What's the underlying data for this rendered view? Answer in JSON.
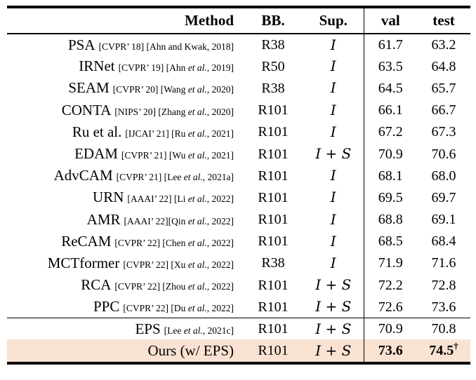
{
  "table": {
    "columns": [
      {
        "label": "Method"
      },
      {
        "label": "BB."
      },
      {
        "label": "Sup."
      },
      {
        "label": "val"
      },
      {
        "label": "test"
      }
    ],
    "highlight_color": "#f9e2d2",
    "rule_color": "#000000",
    "sections": [
      {
        "rows": [
          {
            "method": "PSA",
            "cite": "[CVPR’ 18] [Ahn and Kwak, 2018]",
            "bb": "R38",
            "sup": "I",
            "val": "61.7",
            "test": "63.2",
            "bold": false,
            "highlight": false,
            "dagger": ""
          },
          {
            "method": "IRNet",
            "cite": "[CVPR’ 19] [Ahn et al., 2019]",
            "bb": "R50",
            "sup": "I",
            "val": "63.5",
            "test": "64.8",
            "bold": false,
            "highlight": false,
            "dagger": ""
          },
          {
            "method": "SEAM",
            "cite": "[CVPR’ 20] [Wang et al., 2020]",
            "bb": "R38",
            "sup": "I",
            "val": "64.5",
            "test": "65.7",
            "bold": false,
            "highlight": false,
            "dagger": ""
          },
          {
            "method": "CONTA",
            "cite": "[NIPS’ 20] [Zhang et al., 2020]",
            "bb": "R101",
            "sup": "I",
            "val": "66.1",
            "test": "66.7",
            "bold": false,
            "highlight": false,
            "dagger": ""
          },
          {
            "method": "Ru et al.",
            "cite": "[IJCAI’ 21] [Ru et al., 2021]",
            "bb": "R101",
            "sup": "I",
            "val": "67.2",
            "test": "67.3",
            "bold": false,
            "highlight": false,
            "dagger": ""
          },
          {
            "method": "EDAM",
            "cite": "[CVPR’ 21] [Wu et al., 2021]",
            "bb": "R101",
            "sup": "I + S",
            "val": "70.9",
            "test": "70.6",
            "bold": false,
            "highlight": false,
            "dagger": ""
          },
          {
            "method": "AdvCAM",
            "cite": "[CVPR’ 21] [Lee et al., 2021a]",
            "bb": "R101",
            "sup": "I",
            "val": "68.1",
            "test": "68.0",
            "bold": false,
            "highlight": false,
            "dagger": ""
          },
          {
            "method": "URN",
            "cite": "[AAAI’ 22] [Li et al., 2022]",
            "bb": "R101",
            "sup": "I",
            "val": "69.5",
            "test": "69.7",
            "bold": false,
            "highlight": false,
            "dagger": ""
          },
          {
            "method": "AMR",
            "cite": "[AAAI’ 22][Qin et al., 2022]",
            "bb": "R101",
            "sup": "I",
            "val": "68.8",
            "test": "69.1",
            "bold": false,
            "highlight": false,
            "dagger": ""
          },
          {
            "method": "ReCAM",
            "cite": "[CVPR’ 22] [Chen et al., 2022]",
            "bb": "R101",
            "sup": "I",
            "val": "68.5",
            "test": "68.4",
            "bold": false,
            "highlight": false,
            "dagger": ""
          },
          {
            "method": "MCTformer",
            "cite": "[CVPR’ 22] [Xu et al., 2022]",
            "bb": "R38",
            "sup": "I",
            "val": "71.9",
            "test": "71.6",
            "bold": false,
            "highlight": false,
            "dagger": ""
          },
          {
            "method": "RCA",
            "cite": "[CVPR’ 22] [Zhou et al., 2022]",
            "bb": "R101",
            "sup": "I + S",
            "val": "72.2",
            "test": "72.8",
            "bold": false,
            "highlight": false,
            "dagger": ""
          },
          {
            "method": "PPC",
            "cite": "[CVPR’ 22] [Du et al., 2022]",
            "bb": "R101",
            "sup": "I + S",
            "val": "72.6",
            "test": "73.6",
            "bold": false,
            "highlight": false,
            "dagger": ""
          }
        ]
      },
      {
        "rows": [
          {
            "method": "EPS",
            "cite": "[Lee et al., 2021c]",
            "bb": "R101",
            "sup": "I + S",
            "val": "70.9",
            "test": "70.8",
            "bold": false,
            "highlight": false,
            "dagger": ""
          },
          {
            "method": "Ours (w/ EPS)",
            "cite": "",
            "bb": "R101",
            "sup": "I + S",
            "val": "73.6",
            "test": "74.5",
            "bold": true,
            "highlight": true,
            "dagger": "†"
          }
        ]
      }
    ]
  }
}
